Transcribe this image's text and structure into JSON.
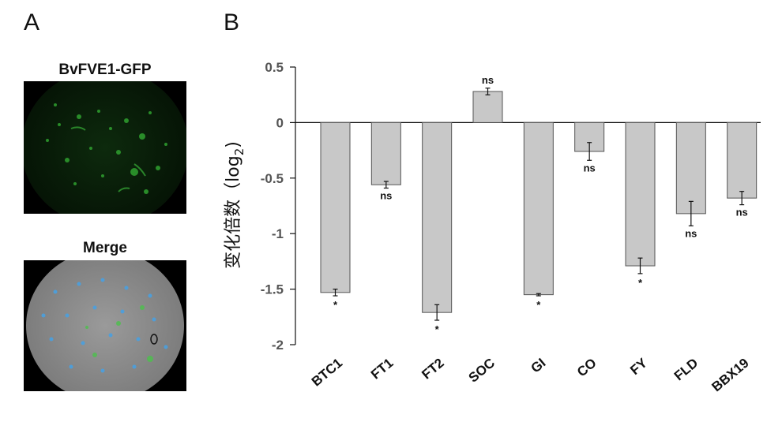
{
  "panel_a": {
    "letter": "A",
    "top_image_title": "BvFVE1-GFP",
    "bottom_image_title": "Merge"
  },
  "panel_b": {
    "letter": "B"
  },
  "chart_data": {
    "type": "bar",
    "categories": [
      "BTC1",
      "FT1",
      "FT2",
      "SOC",
      "GI",
      "CO",
      "FY",
      "FLD",
      "BBX19"
    ],
    "values": [
      -1.53,
      -0.56,
      -1.71,
      0.28,
      -1.55,
      -0.26,
      -1.29,
      -0.82,
      -0.68
    ],
    "errors": [
      0.03,
      0.03,
      0.07,
      0.03,
      0.01,
      0.08,
      0.07,
      0.11,
      0.06
    ],
    "significance": [
      "*",
      "ns",
      "*",
      "ns",
      "*",
      "ns",
      "*",
      "ns",
      "ns"
    ],
    "ylabel": "变化倍数（log",
    "ylabel_subscript": "2",
    "ylabel_close": ")",
    "ylim": [
      -2,
      0.5
    ],
    "yticks": [
      0.5,
      0,
      -0.5,
      -1,
      -1.5,
      -2
    ],
    "ytick_labels": [
      "0.5",
      "0",
      "-0.5",
      "-1",
      "-1.5",
      "-2"
    ],
    "bar_color": "#c8c8c8",
    "grid": false
  }
}
